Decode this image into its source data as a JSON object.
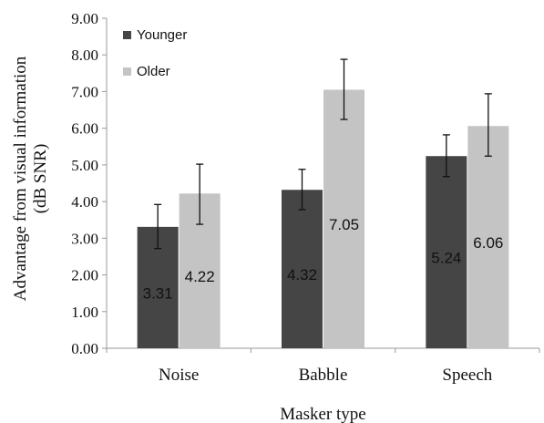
{
  "chart_data": {
    "type": "bar",
    "title": "",
    "xlabel": "Masker type",
    "ylabel_lines": [
      "Advantage from visual information",
      "(dB SNR)"
    ],
    "categories": [
      "Noise",
      "Babble",
      "Speech"
    ],
    "ylim": [
      0,
      9
    ],
    "yticks": [
      0,
      1,
      2,
      3,
      4,
      5,
      6,
      7,
      8,
      9
    ],
    "ytick_labels": [
      "0.00",
      "1.00",
      "2.00",
      "3.00",
      "4.00",
      "5.00",
      "6.00",
      "7.00",
      "8.00",
      "9.00"
    ],
    "grid": false,
    "legend_position": "top-left",
    "series": [
      {
        "name": "Younger",
        "color": "#454545",
        "values": [
          3.31,
          4.32,
          5.24
        ],
        "value_labels": [
          "3.31",
          "4.32",
          "5.24"
        ],
        "error_low": [
          2.72,
          3.78,
          4.68
        ],
        "error_high": [
          3.92,
          4.88,
          5.82
        ]
      },
      {
        "name": "Older",
        "color": "#c4c4c4",
        "values": [
          4.22,
          7.05,
          6.06
        ],
        "value_labels": [
          "4.22",
          "7.05",
          "6.06"
        ],
        "error_low": [
          3.38,
          6.24,
          5.24
        ],
        "error_high": [
          5.02,
          7.88,
          6.94
        ]
      }
    ]
  }
}
